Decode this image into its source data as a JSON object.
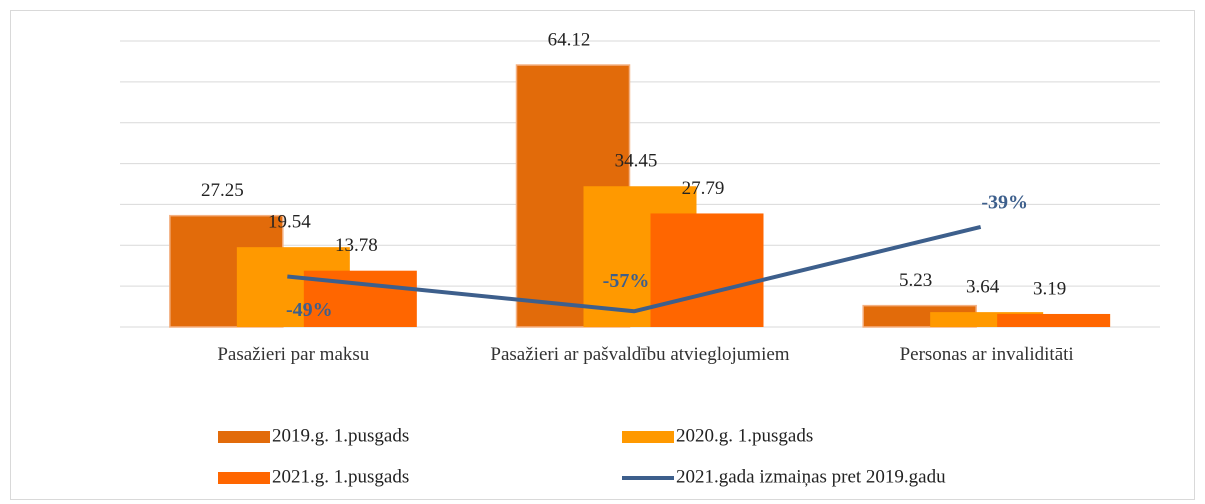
{
  "chart_data": {
    "type": "bar",
    "categories": [
      "Pasažieri par maksu",
      "Pasažieri ar pašvaldību atvieglojumiem",
      "Personas ar invaliditāti"
    ],
    "series": [
      {
        "name": "2019.g. 1.pusgads",
        "color": "#e26b0a",
        "values": [
          27.25,
          64.12,
          5.23
        ]
      },
      {
        "name": "2020.g. 1.pusgads",
        "color": "#ff9900",
        "values": [
          19.54,
          34.45,
          3.64
        ]
      },
      {
        "name": "2021.g. 1.pusgads",
        "color": "#ff6600",
        "values": [
          13.78,
          27.79,
          3.19
        ]
      },
      {
        "name": "2021.gada izmaiņas pret 2019.gadu",
        "color": "#3d5f8c",
        "type": "line",
        "axis": "y2",
        "values": [
          -49.4,
          -56.7,
          -39.0
        ],
        "value_labels": [
          "-49%",
          "-57%",
          "-39%"
        ]
      }
    ],
    "ylim": [
      0,
      70
    ],
    "yticks": [
      0,
      10,
      20,
      30,
      40,
      50,
      60,
      70
    ],
    "y2lim": [
      -60,
      0
    ],
    "grid": true,
    "legend": "bottom"
  }
}
